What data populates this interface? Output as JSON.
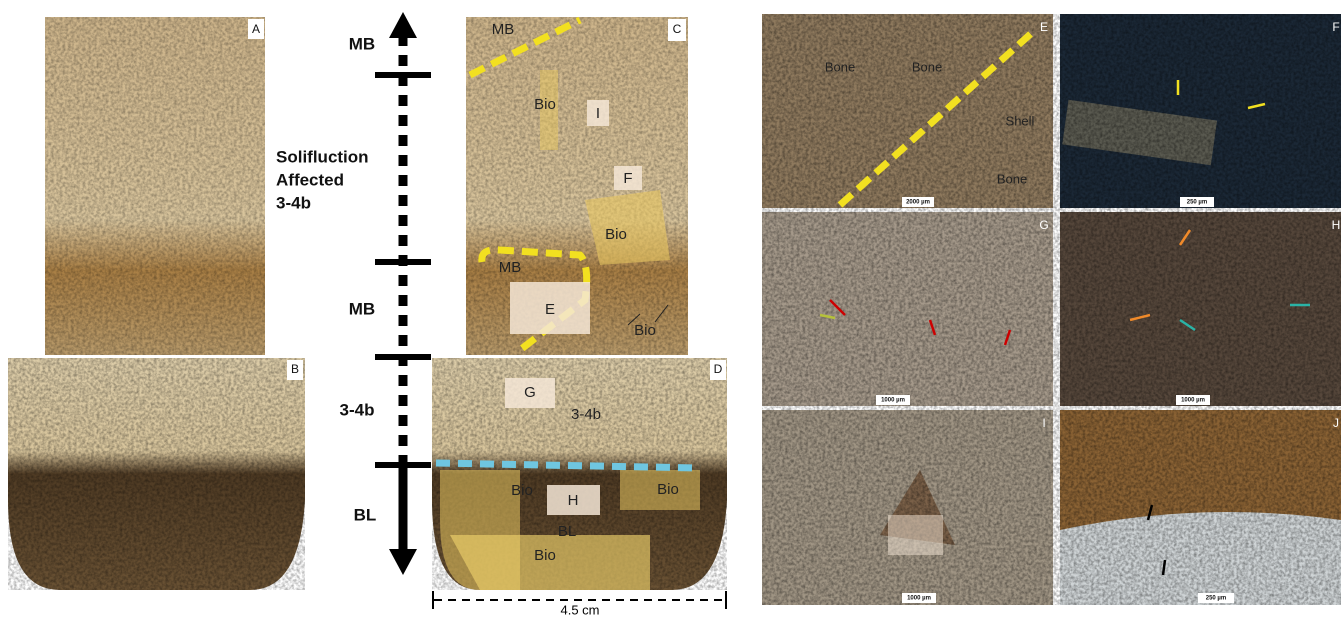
{
  "axis": {
    "labels": [
      "MB",
      "MB",
      "3-4b",
      "BL"
    ],
    "solifluction": [
      "Solifluction",
      "Affected",
      "3-4b"
    ]
  },
  "panel_letters": [
    "A",
    "B",
    "C",
    "D",
    "E",
    "F",
    "G",
    "H",
    "I",
    "J"
  ],
  "panel_c": {
    "labels": [
      "MB",
      "Bio",
      "I",
      "F",
      "Bio",
      "MB",
      "E",
      "Bio"
    ]
  },
  "panel_d": {
    "labels": [
      "G",
      "3-4b",
      "Bio",
      "H",
      "Bio",
      "BL",
      "Bio"
    ]
  },
  "panel_e": {
    "labels": [
      "Bone",
      "Bone",
      "Shell",
      "Bone"
    ]
  },
  "scale_bars": [
    "2000 µm",
    "250 µm",
    "1000 µm",
    "1000 µm",
    "1000 µm",
    "250 µm"
  ],
  "section_width": "4.5 cm"
}
